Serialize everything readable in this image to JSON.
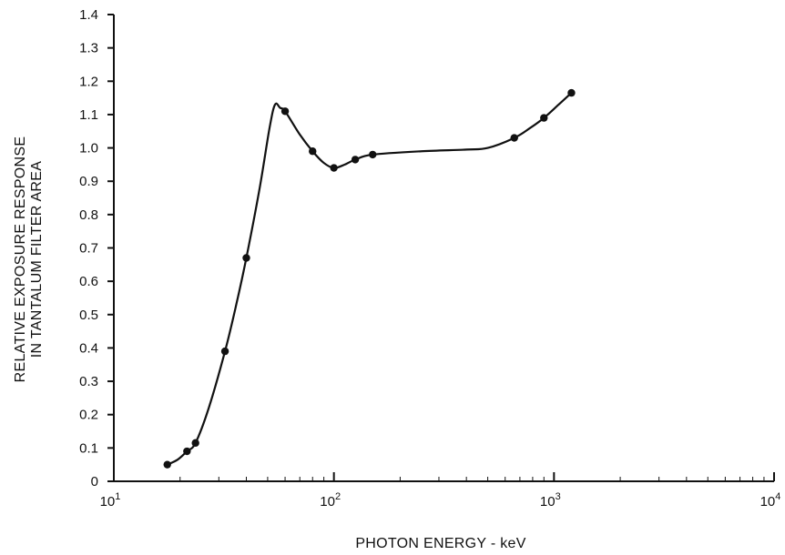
{
  "chart_data": {
    "type": "line",
    "title": "",
    "xlabel": "PHOTON ENERGY - keV",
    "ylabel_lines": [
      "RELATIVE EXPOSURE RESPONSE",
      "IN TANTALUM FILTER AREA"
    ],
    "x_scale": "log",
    "xlim": [
      10,
      10000
    ],
    "ylim": [
      0,
      1.4
    ],
    "x_ticks": [
      {
        "value": 10,
        "base": "10",
        "exp": "1"
      },
      {
        "value": 100,
        "base": "10",
        "exp": "2"
      },
      {
        "value": 1000,
        "base": "10",
        "exp": "3"
      },
      {
        "value": 10000,
        "base": "10",
        "exp": "4"
      }
    ],
    "y_ticks": [
      {
        "value": 0,
        "label": "0"
      },
      {
        "value": 0.1,
        "label": "0.1"
      },
      {
        "value": 0.2,
        "label": "0.2"
      },
      {
        "value": 0.3,
        "label": "0.3"
      },
      {
        "value": 0.4,
        "label": "0.4"
      },
      {
        "value": 0.5,
        "label": "0.5"
      },
      {
        "value": 0.6,
        "label": "0.6"
      },
      {
        "value": 0.7,
        "label": "0.7"
      },
      {
        "value": 0.8,
        "label": "0.8"
      },
      {
        "value": 0.9,
        "label": "0.9"
      },
      {
        "value": 1.0,
        "label": "1.0"
      },
      {
        "value": 1.1,
        "label": "1.1"
      },
      {
        "value": 1.2,
        "label": "1.2"
      },
      {
        "value": 1.3,
        "label": "1.3"
      },
      {
        "value": 1.4,
        "label": "1.4"
      }
    ],
    "points": [
      {
        "x": 17.5,
        "y": 0.05
      },
      {
        "x": 21.5,
        "y": 0.09
      },
      {
        "x": 23.5,
        "y": 0.115
      },
      {
        "x": 32,
        "y": 0.39
      },
      {
        "x": 40,
        "y": 0.67
      },
      {
        "x": 60,
        "y": 1.11
      },
      {
        "x": 80,
        "y": 0.99
      },
      {
        "x": 100,
        "y": 0.94
      },
      {
        "x": 125,
        "y": 0.965
      },
      {
        "x": 150,
        "y": 0.98
      },
      {
        "x": 660,
        "y": 1.03
      },
      {
        "x": 900,
        "y": 1.09
      },
      {
        "x": 1200,
        "y": 1.165
      }
    ],
    "curve": [
      {
        "x": 17.5,
        "y": 0.05
      },
      {
        "x": 19.5,
        "y": 0.065
      },
      {
        "x": 21.5,
        "y": 0.09
      },
      {
        "x": 23.5,
        "y": 0.115
      },
      {
        "x": 27,
        "y": 0.22
      },
      {
        "x": 32,
        "y": 0.39
      },
      {
        "x": 36,
        "y": 0.53
      },
      {
        "x": 40,
        "y": 0.67
      },
      {
        "x": 46,
        "y": 0.88
      },
      {
        "x": 51,
        "y": 1.06
      },
      {
        "x": 54,
        "y": 1.13
      },
      {
        "x": 57,
        "y": 1.12
      },
      {
        "x": 60,
        "y": 1.11
      },
      {
        "x": 70,
        "y": 1.04
      },
      {
        "x": 80,
        "y": 0.99
      },
      {
        "x": 90,
        "y": 0.955
      },
      {
        "x": 100,
        "y": 0.94
      },
      {
        "x": 112,
        "y": 0.95
      },
      {
        "x": 125,
        "y": 0.965
      },
      {
        "x": 150,
        "y": 0.98
      },
      {
        "x": 250,
        "y": 0.99
      },
      {
        "x": 400,
        "y": 0.995
      },
      {
        "x": 500,
        "y": 1.0
      },
      {
        "x": 660,
        "y": 1.03
      },
      {
        "x": 780,
        "y": 1.06
      },
      {
        "x": 900,
        "y": 1.09
      },
      {
        "x": 1050,
        "y": 1.13
      },
      {
        "x": 1200,
        "y": 1.165
      }
    ],
    "grid": false,
    "line_color": "#111111",
    "marker_color": "#111111"
  }
}
